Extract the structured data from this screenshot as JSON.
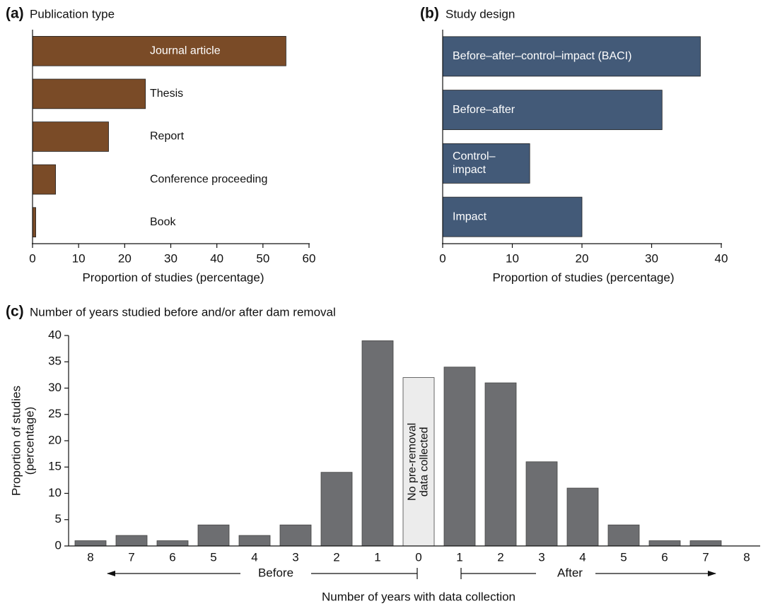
{
  "chart_data": [
    {
      "type": "hbar",
      "panel": "(a)",
      "title": "Publication type",
      "categories": [
        "Journal article",
        "Thesis",
        "Report",
        "Conference proceeding",
        "Book"
      ],
      "values": [
        55,
        24.5,
        16.5,
        5,
        0.7
      ],
      "color": "#7a4b27",
      "xlim": [
        0,
        60
      ],
      "xticks": [
        0,
        10,
        20,
        30,
        40,
        50,
        60
      ],
      "xlabel": "Proportion of studies (percentage)"
    },
    {
      "type": "hbar",
      "panel": "(b)",
      "title": "Study design",
      "categories": [
        "Before–after–control–impact (BACI)",
        "Before–after",
        "Control–\nimpact",
        "Impact"
      ],
      "values": [
        37,
        31.5,
        12.5,
        20
      ],
      "color": "#435a78",
      "xlim": [
        0,
        40
      ],
      "xticks": [
        0,
        10,
        20,
        30,
        40
      ],
      "xlabel": "Proportion of studies (percentage)"
    },
    {
      "type": "bar",
      "panel": "(c)",
      "title": "Number of years studied before and/or after dam removal",
      "categories": [
        "8",
        "7",
        "6",
        "5",
        "4",
        "3",
        "2",
        "1",
        "0",
        "1",
        "2",
        "3",
        "4",
        "5",
        "6",
        "7",
        "8"
      ],
      "values": [
        1,
        2,
        1,
        4,
        2,
        4,
        14,
        39,
        32,
        34,
        31,
        16,
        11,
        4,
        1,
        1,
        0
      ],
      "colors": [
        "#6d6e71",
        "#6d6e71",
        "#6d6e71",
        "#6d6e71",
        "#6d6e71",
        "#6d6e71",
        "#6d6e71",
        "#6d6e71",
        "#ececec",
        "#6d6e71",
        "#6d6e71",
        "#6d6e71",
        "#6d6e71",
        "#6d6e71",
        "#6d6e71",
        "#6d6e71",
        "#6d6e71"
      ],
      "bar_labels": [
        null,
        null,
        null,
        null,
        null,
        null,
        null,
        null,
        "No pre-removal\ndata collected",
        null,
        null,
        null,
        null,
        null,
        null,
        null,
        null
      ],
      "ylim": [
        0,
        40
      ],
      "yticks": [
        0,
        5,
        10,
        15,
        20,
        25,
        30,
        35,
        40
      ],
      "ylabel": "Proportion of studies\n(percentage)",
      "xlabel": "Number of years with data collection",
      "groups": [
        "Before",
        "After"
      ]
    }
  ]
}
